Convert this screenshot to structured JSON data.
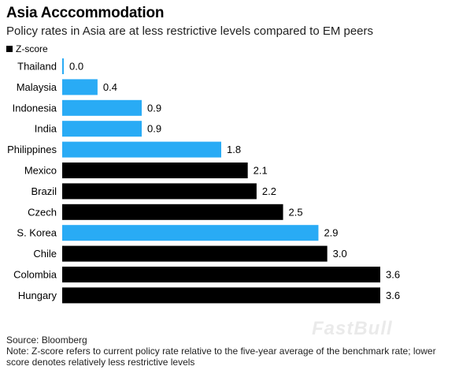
{
  "header": {
    "title": "Asia Acccommodation",
    "subtitle": "Policy rates in Asia are at less restrictive levels compared to EM peers"
  },
  "legend": {
    "label": "Z-score"
  },
  "colors": {
    "asia": "#29abf5",
    "other": "#000000"
  },
  "chart_data": {
    "type": "bar",
    "orientation": "horizontal",
    "title": "Asia Acccommodation",
    "series": [
      {
        "name": "Z-score"
      }
    ],
    "categories": [
      "Thailand",
      "Malaysia",
      "Indonesia",
      "India",
      "Philippines",
      "Mexico",
      "Brazil",
      "Czech",
      "S. Korea",
      "Chile",
      "Colombia",
      "Hungary"
    ],
    "values": [
      0.0,
      0.4,
      0.9,
      0.9,
      1.8,
      2.1,
      2.2,
      2.5,
      2.9,
      3.0,
      3.6,
      3.6
    ],
    "value_labels": [
      "0.0",
      "0.4",
      "0.9",
      "0.9",
      "1.8",
      "2.1",
      "2.2",
      "2.5",
      "2.9",
      "3.0",
      "3.6",
      "3.6"
    ],
    "highlight": [
      true,
      true,
      true,
      true,
      true,
      false,
      false,
      false,
      true,
      false,
      false,
      false
    ],
    "xlim": [
      0,
      3.6
    ],
    "grid": false
  },
  "footer": {
    "source": "Source: Bloomberg",
    "note": "Note: Z-score refers to current policy rate relative to the five-year average of the benchmark rate; lower score denotes relatively less restrictive levels"
  },
  "watermark": "FastBull"
}
